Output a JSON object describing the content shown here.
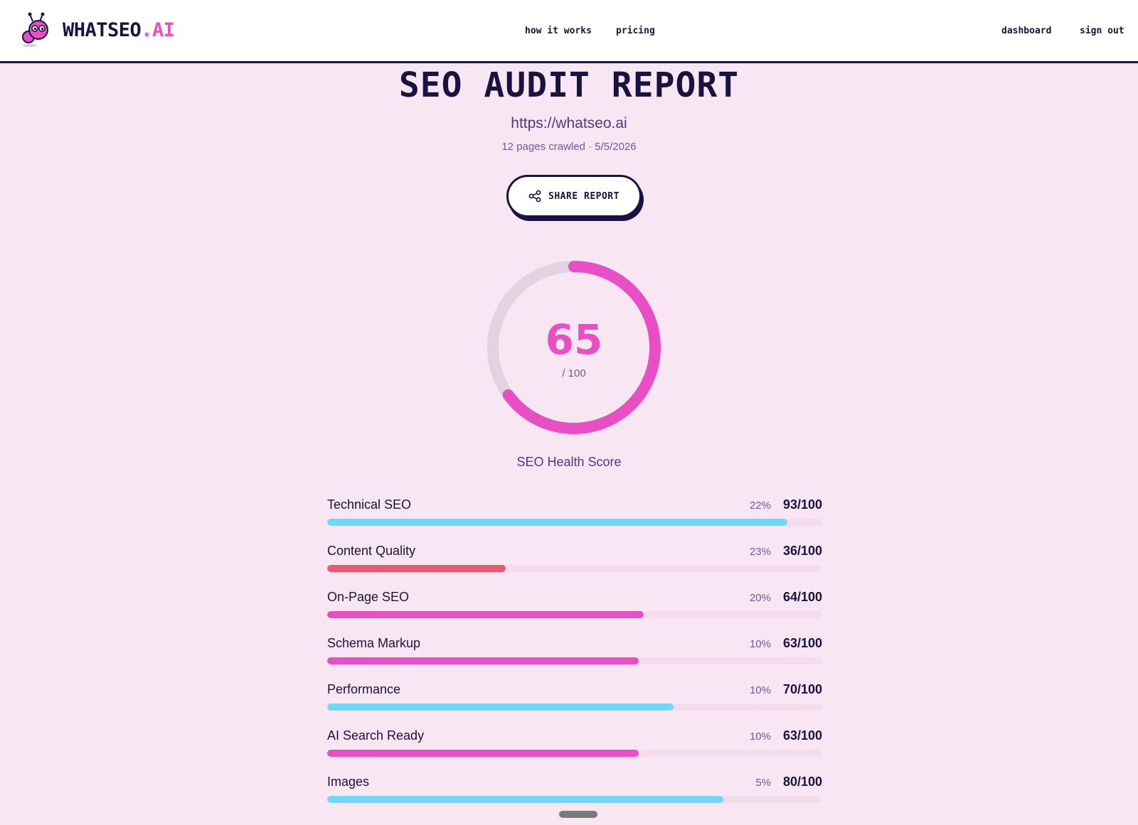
{
  "header": {
    "logo": {
      "name": "WHATSEO",
      "suffix": ".AI"
    },
    "nav": {
      "how_it_works": "how it works",
      "pricing": "pricing",
      "dashboard": "dashboard",
      "sign_out": "sign out"
    }
  },
  "report": {
    "title": "SEO AUDIT REPORT",
    "url": "https://whatseo.ai",
    "meta": "12 pages crawled · 5/5/2026",
    "share_label": "SHARE REPORT",
    "share_icon": "share-icon"
  },
  "score": {
    "value": "65",
    "max_label": "/ 100",
    "fraction": 0.65,
    "label": "SEO Health Score",
    "color": "#e84fc4",
    "track_color": "#e2d2e2"
  },
  "categories": [
    {
      "name": "Technical SEO",
      "weight": "22%",
      "score": "93/100",
      "value": 93,
      "color": "#6fd8f7"
    },
    {
      "name": "Content Quality",
      "weight": "23%",
      "score": "36/100",
      "value": 36,
      "color": "#ea5873"
    },
    {
      "name": "On-Page SEO",
      "weight": "20%",
      "score": "64/100",
      "value": 64,
      "color": "#e84fc4"
    },
    {
      "name": "Schema Markup",
      "weight": "10%",
      "score": "63/100",
      "value": 63,
      "color": "#e84fc4"
    },
    {
      "name": "Performance",
      "weight": "10%",
      "score": "70/100",
      "value": 70,
      "color": "#6fd8f7"
    },
    {
      "name": "AI Search Ready",
      "weight": "10%",
      "score": "63/100",
      "value": 63,
      "color": "#e84fc4"
    },
    {
      "name": "Images",
      "weight": "5%",
      "score": "80/100",
      "value": 80,
      "color": "#6fd8f7"
    }
  ]
}
